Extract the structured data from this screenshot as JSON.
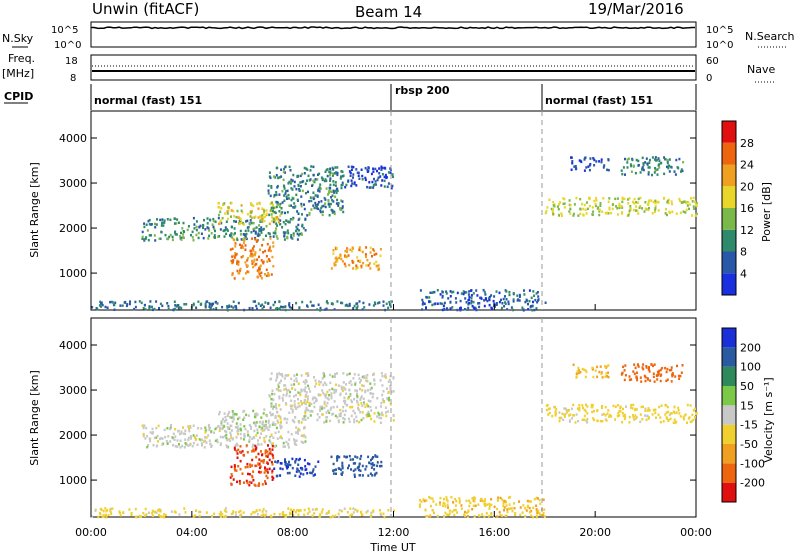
{
  "header": {
    "radar": "Unwin (fitACF)",
    "beam": "Beam 14",
    "date": "19/Mar/2016"
  },
  "top_panels": {
    "nsky_label": "N.Sky",
    "nsky_ticks": [
      "10^5",
      "10^0"
    ],
    "nsearch_label": "N.Search",
    "nsearch_ticks": [
      "10^5",
      "10^0"
    ],
    "freq_label_1": "Freq.",
    "freq_label_2": "[MHz]",
    "freq_ticks": [
      "18",
      "8"
    ],
    "nave_label": "Nave",
    "nave_ticks": [
      "60",
      "0"
    ],
    "cpid_label": "CPID",
    "cpid_segments": [
      {
        "label": "normal (fast) 151",
        "start": 0,
        "end": 12
      },
      {
        "label": "rbsp 200",
        "start": 12,
        "end": 18
      },
      {
        "label": "normal (fast) 151",
        "start": 18,
        "end": 24
      }
    ]
  },
  "chart_data": [
    {
      "type": "heatmap",
      "title": "",
      "xlabel": "Time UT",
      "ylabel": "Slant Range [km]",
      "xlim": [
        0,
        24
      ],
      "ylim": [
        180,
        4600
      ],
      "x_ticks": [
        "00:00",
        "04:00",
        "08:00",
        "12:00",
        "16:00",
        "20:00",
        "00:00"
      ],
      "y_ticks": [
        1000,
        2000,
        3000,
        4000
      ],
      "colorbar": {
        "label": "Power [dB]",
        "ticks": [
          "4",
          "8",
          "12",
          "16",
          "20",
          "24",
          "28"
        ],
        "colors": [
          "#1a2fe0",
          "#2a58a8",
          "#2e8a6a",
          "#7ab84a",
          "#e8d62a",
          "#f0a020",
          "#ee6510",
          "#e01010"
        ]
      },
      "mode_boundaries": [
        12,
        18
      ],
      "regions": [
        {
          "t0": 2.0,
          "t1": 8.5,
          "r0": 1750,
          "r1": 2250,
          "value": 10
        },
        {
          "t0": 5.0,
          "t1": 7.5,
          "r0": 2100,
          "r1": 2600,
          "value": 18
        },
        {
          "t0": 7.0,
          "t1": 10.0,
          "r0": 2300,
          "r1": 3400,
          "value": 9
        },
        {
          "t0": 10.0,
          "t1": 12.0,
          "r0": 2900,
          "r1": 3400,
          "value": 5
        },
        {
          "t0": 5.5,
          "t1": 7.2,
          "r0": 900,
          "r1": 1800,
          "value": 24
        },
        {
          "t0": 9.5,
          "t1": 11.5,
          "r0": 1100,
          "r1": 1600,
          "value": 22
        },
        {
          "t0": 0.0,
          "t1": 12.0,
          "r0": 200,
          "r1": 400,
          "value": 8
        },
        {
          "t0": 13.0,
          "t1": 18.0,
          "r0": 200,
          "r1": 650,
          "value": 6
        },
        {
          "t0": 18.0,
          "t1": 24.0,
          "r0": 2300,
          "r1": 2700,
          "value": 16
        },
        {
          "t0": 19.0,
          "t1": 20.5,
          "r0": 3300,
          "r1": 3600,
          "value": 4
        },
        {
          "t0": 21.0,
          "t1": 23.5,
          "r0": 3200,
          "r1": 3600,
          "value": 9
        }
      ]
    },
    {
      "type": "heatmap",
      "title": "",
      "xlabel": "Time UT",
      "ylabel": "Slant Range [km]",
      "xlim": [
        0,
        24
      ],
      "ylim": [
        180,
        4600
      ],
      "x_ticks": [
        "00:00",
        "04:00",
        "08:00",
        "12:00",
        "16:00",
        "20:00",
        "00:00"
      ],
      "y_ticks": [
        1000,
        2000,
        3000,
        4000
      ],
      "colorbar": {
        "label": "Velocity [m s⁻¹]",
        "ticks": [
          "200",
          "100",
          "50",
          "15",
          "-15",
          "-50",
          "-100",
          "-200"
        ],
        "colors": [
          "#1a2fd8",
          "#2a5aa0",
          "#2e8a5a",
          "#7cc848",
          "#c8c8c8",
          "#f0d030",
          "#f0a020",
          "#ee6510",
          "#e01010"
        ]
      },
      "mode_boundaries": [
        12,
        18
      ],
      "regions": [
        {
          "t0": 2.0,
          "t1": 8.5,
          "r0": 1750,
          "r1": 2250,
          "value": 0
        },
        {
          "t0": 5.0,
          "t1": 7.5,
          "r0": 2100,
          "r1": 2600,
          "value": 5
        },
        {
          "t0": 7.0,
          "t1": 12.0,
          "r0": 2300,
          "r1": 3400,
          "value": 0
        },
        {
          "t0": 5.5,
          "t1": 7.2,
          "r0": 900,
          "r1": 1800,
          "value": -200
        },
        {
          "t0": 7.2,
          "t1": 9.0,
          "r0": 1100,
          "r1": 1500,
          "value": 200
        },
        {
          "t0": 9.5,
          "t1": 11.5,
          "r0": 1100,
          "r1": 1600,
          "value": 150
        },
        {
          "t0": 0.0,
          "t1": 12.0,
          "r0": 200,
          "r1": 400,
          "value": -30
        },
        {
          "t0": 13.0,
          "t1": 18.0,
          "r0": 200,
          "r1": 650,
          "value": -40
        },
        {
          "t0": 18.0,
          "t1": 24.0,
          "r0": 2300,
          "r1": 2700,
          "value": -30
        },
        {
          "t0": 19.0,
          "t1": 20.5,
          "r0": 3300,
          "r1": 3600,
          "value": -50
        },
        {
          "t0": 21.0,
          "t1": 23.5,
          "r0": 3200,
          "r1": 3600,
          "value": -120
        }
      ]
    }
  ]
}
